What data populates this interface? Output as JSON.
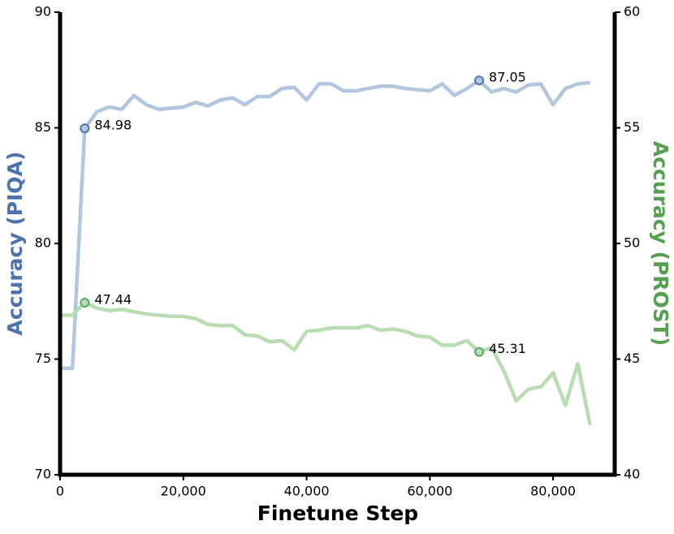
{
  "chart_data": {
    "type": "line",
    "xlabel": "Finetune Step",
    "ylabel": "Accuracy (PIQA)",
    "y2label": "Accuracy (PROST)",
    "x": [
      0,
      2000,
      4000,
      6000,
      8000,
      10000,
      12000,
      14000,
      16000,
      18000,
      20000,
      22000,
      24000,
      26000,
      28000,
      30000,
      32000,
      34000,
      36000,
      38000,
      40000,
      42000,
      44000,
      46000,
      48000,
      50000,
      52000,
      54000,
      56000,
      58000,
      60000,
      62000,
      64000,
      66000,
      68000,
      70000,
      72000,
      74000,
      76000,
      78000,
      80000,
      82000,
      84000,
      86000
    ],
    "series": [
      {
        "name": "PIQA",
        "axis": "y",
        "color": "#b3c6df",
        "marker_color": "#4c72b0",
        "values": [
          74.6,
          74.6,
          84.98,
          85.7,
          85.9,
          85.8,
          86.4,
          86.0,
          85.8,
          85.85,
          85.9,
          86.1,
          85.95,
          86.2,
          86.3,
          86.0,
          86.35,
          86.35,
          86.7,
          86.75,
          86.2,
          86.9,
          86.9,
          86.6,
          86.6,
          86.7,
          86.8,
          86.8,
          86.7,
          86.65,
          86.6,
          86.9,
          86.4,
          86.7,
          87.05,
          86.55,
          86.7,
          86.55,
          86.85,
          86.9,
          86.0,
          86.7,
          86.9,
          86.95
        ],
        "markers": [
          {
            "x": 4000,
            "value": 84.98
          },
          {
            "x": 68000,
            "value": 87.05
          }
        ]
      },
      {
        "name": "PROST",
        "axis": "y2",
        "color": "#b9dcb2",
        "marker_color": "#55a868",
        "values": [
          46.9,
          46.9,
          47.44,
          47.2,
          47.1,
          47.15,
          47.05,
          46.95,
          46.9,
          46.85,
          46.85,
          46.75,
          46.5,
          46.45,
          46.45,
          46.05,
          46.0,
          45.75,
          45.8,
          45.4,
          46.2,
          46.25,
          46.35,
          46.35,
          46.35,
          46.45,
          46.25,
          46.3,
          46.2,
          46.0,
          45.95,
          45.6,
          45.6,
          45.8,
          45.31,
          45.5,
          44.5,
          43.2,
          43.7,
          43.8,
          44.4,
          43.0,
          44.8,
          42.15
        ],
        "markers": [
          {
            "x": 4000,
            "value": 47.44
          },
          {
            "x": 68000,
            "value": 45.31
          }
        ]
      }
    ],
    "xlim": [
      0,
      90000
    ],
    "xticks": [
      0,
      {
        "value": 20000,
        "label": "20,000"
      },
      {
        "value": 40000,
        "label": "40,000"
      },
      {
        "value": 60000,
        "label": "60,000"
      },
      {
        "value": 80000,
        "label": "80,000"
      }
    ],
    "ylim": [
      70,
      90
    ],
    "yticks": [
      70,
      75,
      80,
      85,
      90
    ],
    "y2lim": [
      40,
      60
    ],
    "y2ticks": [
      40,
      45,
      50,
      55,
      60
    ]
  }
}
